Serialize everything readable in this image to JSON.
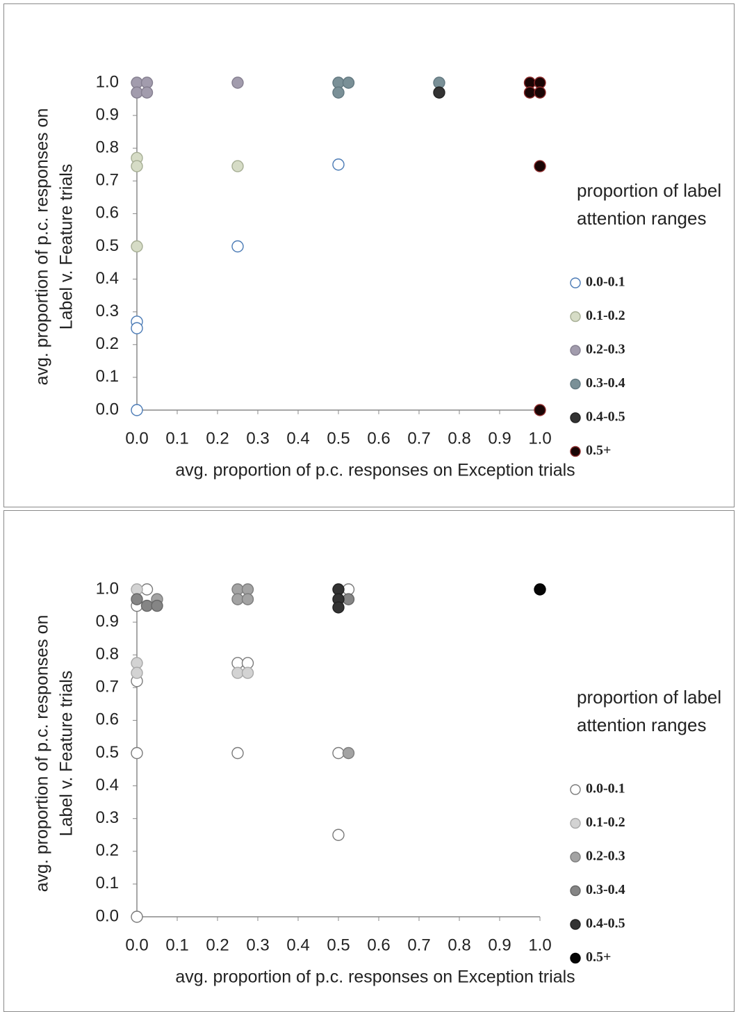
{
  "chart_data": [
    {
      "type": "scatter",
      "xlabel": "avg. proportion of p.c. responses on Exception trials",
      "ylabel": [
        "avg. proportion of p.c. responses on",
        "Label v. Feature trials"
      ],
      "legend_title": "proportion of label attention ranges",
      "legend": "right",
      "xlim": [
        0,
        1
      ],
      "ylim": [
        0,
        1
      ],
      "xticks": [
        {
          "value": 0,
          "label": "0.0"
        },
        0.1,
        0.2,
        0.3,
        0.4,
        0.5,
        0.6,
        0.7,
        0.8,
        0.9,
        {
          "value": 1,
          "label": "1.0"
        }
      ],
      "yticks": [
        {
          "value": 0,
          "label": "0.0"
        },
        0.1,
        0.2,
        0.3,
        0.4,
        0.5,
        0.6,
        0.7,
        0.8,
        0.9,
        {
          "value": 1,
          "label": "1.0"
        }
      ],
      "series": [
        {
          "name": "0.0-0.1",
          "color": "#ffffff",
          "edgecolor": "#4a7ab5",
          "x": [
            0,
            0,
            0,
            0.25,
            0.5
          ],
          "y": [
            0.27,
            0.25,
            0,
            0.5,
            0.75
          ]
        },
        {
          "name": "0.1-0.2",
          "color": "#d6dcc6",
          "edgecolor": "#a6ae94",
          "x": [
            0,
            0,
            0,
            0.25
          ],
          "y": [
            0.77,
            0.745,
            0.5,
            0.745
          ]
        },
        {
          "name": "0.2-0.3",
          "color": "#a29cad",
          "edgecolor": "#857f90",
          "x": [
            0,
            0.025,
            0,
            0.025,
            0.25
          ],
          "y": [
            1,
            1,
            0.97,
            0.97,
            1
          ]
        },
        {
          "name": "0.3-0.4",
          "color": "#7a9097",
          "edgecolor": "#627880",
          "x": [
            0.5,
            0.525,
            0.5,
            0.75
          ],
          "y": [
            1,
            1,
            0.97,
            1
          ]
        },
        {
          "name": "0.4-0.5",
          "color": "#333333",
          "edgecolor": "#222222",
          "x": [
            0.75
          ],
          "y": [
            0.97
          ]
        },
        {
          "name": "0.5+",
          "color": "#1a0505",
          "edgecolor": "#8b2a2a",
          "x": [
            0.975,
            1,
            0.975,
            1,
            1,
            1
          ],
          "y": [
            1,
            1,
            0.97,
            0.97,
            0.745,
            0
          ]
        }
      ]
    },
    {
      "type": "scatter",
      "xlabel": "avg. proportion of p.c. responses on Exception trials",
      "ylabel": [
        "avg. proportion of p.c. responses on",
        "Label v. Feature trials"
      ],
      "legend_title": "proportion of label attention ranges",
      "legend": "right",
      "xlim": [
        0,
        1
      ],
      "ylim": [
        0,
        1
      ],
      "xticks": [
        {
          "value": 0,
          "label": "0.0"
        },
        0.1,
        0.2,
        0.3,
        0.4,
        0.5,
        0.6,
        0.7,
        0.8,
        0.9,
        {
          "value": 1,
          "label": "1.0"
        }
      ],
      "yticks": [
        {
          "value": 0,
          "label": "0.0"
        },
        0.1,
        0.2,
        0.3,
        0.4,
        0.5,
        0.6,
        0.7,
        0.8,
        0.9,
        {
          "value": 1,
          "label": "1.0"
        }
      ],
      "series": [
        {
          "name": "0.0-0.1",
          "color": "#ffffff",
          "edgecolor": "#7a7a7a",
          "x": [
            0.025,
            0,
            0,
            0,
            0,
            0.25,
            0.275,
            0.25,
            0.5,
            0.5,
            0.525
          ],
          "y": [
            1,
            0.95,
            0.72,
            0.5,
            0,
            0.775,
            0.775,
            0.5,
            0.5,
            0.25,
            1
          ]
        },
        {
          "name": "0.1-0.2",
          "color": "#d3d3d3",
          "edgecolor": "#a8a8a8",
          "x": [
            0,
            0,
            0,
            0.25,
            0.275
          ],
          "y": [
            1,
            0.775,
            0.745,
            0.745,
            0.745
          ]
        },
        {
          "name": "0.2-0.3",
          "color": "#a3a3a3",
          "edgecolor": "#7d7d7d",
          "x": [
            0.25,
            0.275,
            0.25,
            0.275,
            0.525,
            0.05
          ],
          "y": [
            1,
            1,
            0.97,
            0.97,
            0.5,
            0.97
          ]
        },
        {
          "name": "0.3-0.4",
          "color": "#858585",
          "edgecolor": "#666666",
          "x": [
            0,
            0.025,
            0.05,
            0.525
          ],
          "y": [
            0.97,
            0.95,
            0.95,
            0.97
          ]
        },
        {
          "name": "0.4-0.5",
          "color": "#333333",
          "edgecolor": "#222222",
          "x": [
            0.5,
            0.5,
            0.5
          ],
          "y": [
            1,
            0.97,
            0.945
          ]
        },
        {
          "name": "0.5+",
          "color": "#050505",
          "edgecolor": "#000000",
          "x": [
            1
          ],
          "y": [
            1
          ]
        }
      ]
    }
  ]
}
